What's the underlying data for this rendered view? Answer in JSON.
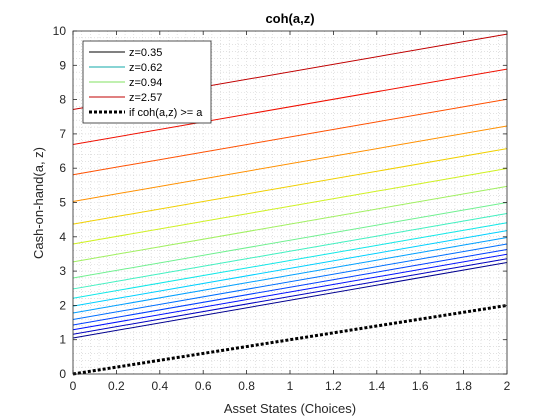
{
  "chart_data": {
    "type": "line",
    "title": "coh(a,z)",
    "xlabel": "Asset States (Choices)",
    "ylabel": "Cash-on-hand(a, z)",
    "xlim": [
      0,
      2
    ],
    "ylim": [
      0,
      10
    ],
    "xticks": [
      "0",
      "0.2",
      "0.4",
      "0.6",
      "0.8",
      "1",
      "1.2",
      "1.4",
      "1.6",
      "1.8",
      "2"
    ],
    "yticks": [
      "0",
      "1",
      "2",
      "3",
      "4",
      "5",
      "6",
      "7",
      "8",
      "9",
      "10"
    ],
    "grid": "minor dotted",
    "legend_position": "top-left",
    "x": [
      0,
      2
    ],
    "series": [
      {
        "name": "z=0.35",
        "values": [
          1.05,
          3.25
        ],
        "color": "#00008f"
      },
      {
        "values": [
          1.16,
          3.36
        ],
        "color": "#0000c0"
      },
      {
        "values": [
          1.29,
          3.49
        ],
        "color": "#0010ff"
      },
      {
        "values": [
          1.43,
          3.63
        ],
        "color": "#0040ff"
      },
      {
        "values": [
          1.59,
          3.79
        ],
        "color": "#0070ff"
      },
      {
        "values": [
          1.78,
          3.98
        ],
        "color": "#00a0ff"
      },
      {
        "values": [
          1.98,
          4.18
        ],
        "color": "#00d0ff"
      },
      {
        "name": "z=0.62",
        "values": [
          2.21,
          4.41
        ],
        "color": "#10e8e8"
      },
      {
        "values": [
          2.48,
          4.68
        ],
        "color": "#40f0c0"
      },
      {
        "values": [
          2.8,
          5.0
        ],
        "color": "#70f090"
      },
      {
        "name": "z=0.94",
        "values": [
          3.27,
          5.47
        ],
        "color": "#a0f060"
      },
      {
        "values": [
          3.79,
          5.99
        ],
        "color": "#d0f020"
      },
      {
        "values": [
          4.37,
          6.57
        ],
        "color": "#f0d000"
      },
      {
        "values": [
          5.03,
          7.23
        ],
        "color": "#ff9000"
      },
      {
        "values": [
          5.81,
          8.01
        ],
        "color": "#ff5000"
      },
      {
        "values": [
          6.69,
          8.89
        ],
        "color": "#f01000"
      },
      {
        "name": "z=2.57",
        "values": [
          7.71,
          9.91
        ],
        "color": "#c00000"
      },
      {
        "name": "if coh(a,z) >= a",
        "values": [
          0,
          2
        ],
        "color": "#000000",
        "style": "dotted-thick"
      }
    ],
    "legend": [
      {
        "label": "z=0.35",
        "color": "#000000"
      },
      {
        "label": "z=0.62",
        "color": "#10a8a8"
      },
      {
        "label": "z=0.94",
        "color": "#80e060"
      },
      {
        "label": "z=2.57",
        "color": "#c00000"
      },
      {
        "label": "if coh(a,z) >= a",
        "color": "#000000",
        "style": "dotted-thick"
      }
    ]
  }
}
